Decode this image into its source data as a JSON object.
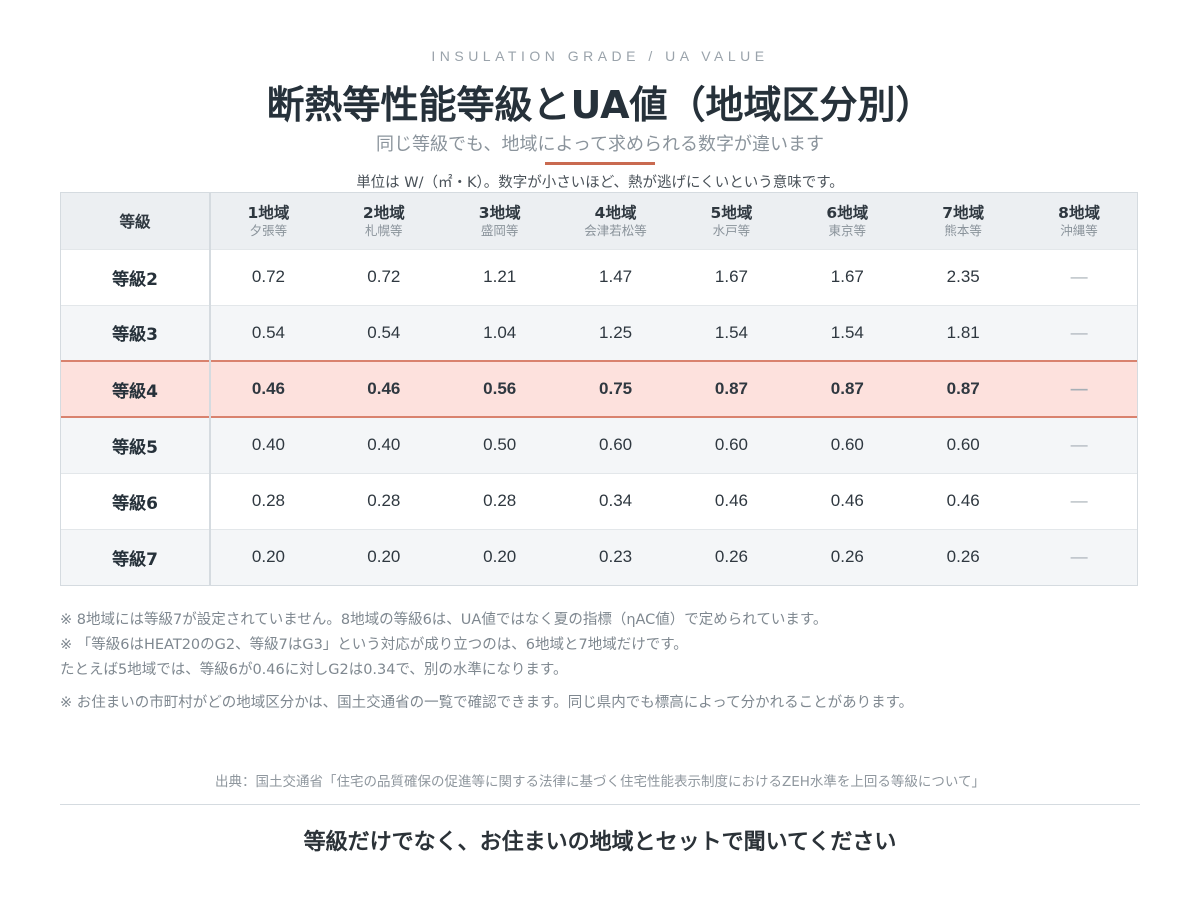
{
  "header": {
    "eyebrow": "INSULATION GRADE / UA VALUE",
    "title": "断熱等性能等級とUA値（地域区分別）",
    "subtitle": "同じ等級でも、地域によって求められる数字が違います",
    "unit_note": "単位は W/（㎡・K）。数字が小さいほど、熱が逃げにくいという意味です。",
    "accent_color": "#c96a50"
  },
  "table": {
    "grade_header": "等級",
    "regions": [
      {
        "name": "1地域",
        "city": "夕張等"
      },
      {
        "name": "2地域",
        "city": "札幌等"
      },
      {
        "name": "3地域",
        "city": "盛岡等"
      },
      {
        "name": "4地域",
        "city": "会津若松等"
      },
      {
        "name": "5地域",
        "city": "水戸等"
      },
      {
        "name": "6地域",
        "city": "東京等"
      },
      {
        "name": "7地域",
        "city": "熊本等"
      },
      {
        "name": "8地域",
        "city": "沖縄等"
      }
    ],
    "rows": [
      {
        "grade": "等級2",
        "values": [
          "0.72",
          "0.72",
          "1.21",
          "1.47",
          "1.67",
          "1.67",
          "2.35",
          "—"
        ],
        "highlight": false
      },
      {
        "grade": "等級3",
        "values": [
          "0.54",
          "0.54",
          "1.04",
          "1.25",
          "1.54",
          "1.54",
          "1.81",
          "—"
        ],
        "highlight": false
      },
      {
        "grade": "等級4",
        "values": [
          "0.46",
          "0.46",
          "0.56",
          "0.75",
          "0.87",
          "0.87",
          "0.87",
          "—"
        ],
        "highlight": true
      },
      {
        "grade": "等級5",
        "values": [
          "0.40",
          "0.40",
          "0.50",
          "0.60",
          "0.60",
          "0.60",
          "0.60",
          "—"
        ],
        "highlight": false
      },
      {
        "grade": "等級6",
        "values": [
          "0.28",
          "0.28",
          "0.28",
          "0.34",
          "0.46",
          "0.46",
          "0.46",
          "—"
        ],
        "highlight": false
      },
      {
        "grade": "等級7",
        "values": [
          "0.20",
          "0.20",
          "0.20",
          "0.23",
          "0.26",
          "0.26",
          "0.26",
          "—"
        ],
        "highlight": false
      }
    ],
    "highlight_color": "#fde1dd"
  },
  "notes": [
    "※ 8地域には等級7が設定されていません。8地域の等級6は、UA値ではなく夏の指標（ηAC値）で定められています。",
    "※ 「等級6はHEAT20のG2、等級7はG3」という対応が成り立つのは、6地域と7地域だけです。",
    "たとえば5地域では、等級6が0.46に対しG2は0.34で、別の水準になります。",
    "※ お住まいの市町村がどの地域区分かは、国土交通省の一覧で確認できます。同じ県内でも標高によって分かれることがあります。"
  ],
  "source": "出典：国土交通省「住宅の品質確保の促進等に関する法律に基づく住宅性能表示制度におけるZEH水準を上回る等級について」",
  "closing": "等級だけでなく、お住まいの地域とセットで聞いてください"
}
